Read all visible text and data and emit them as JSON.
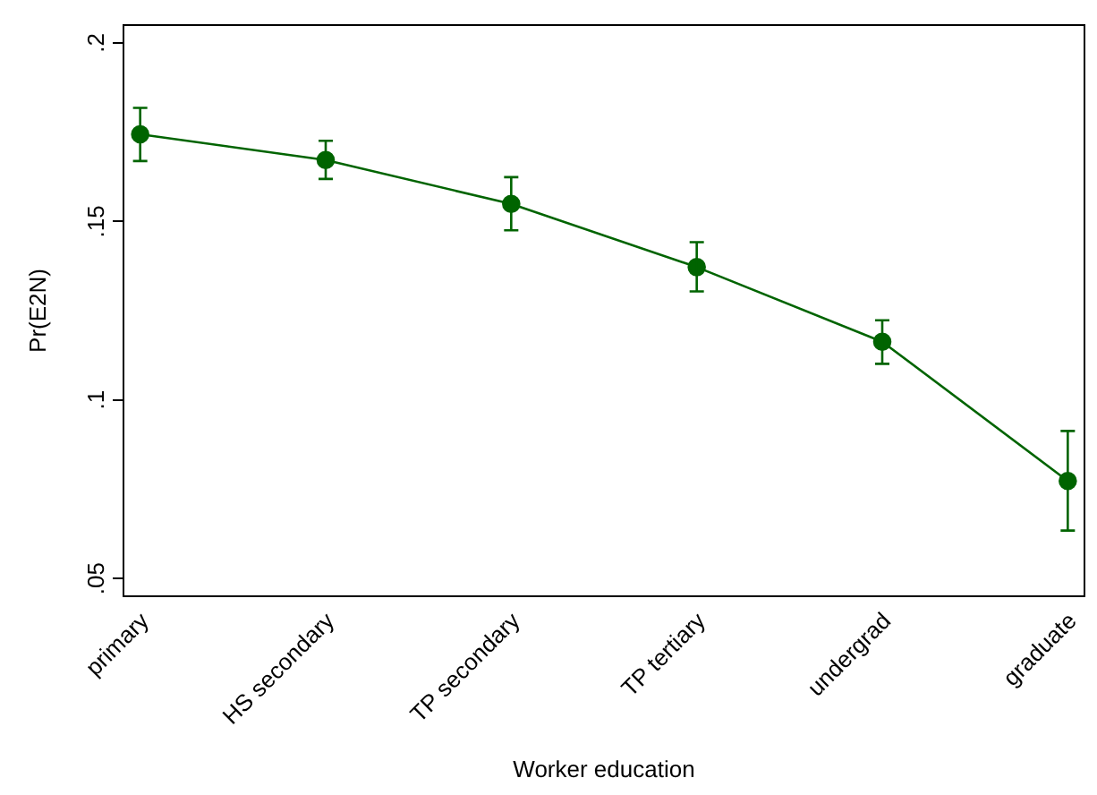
{
  "chart_data": {
    "type": "line",
    "xlabel": "Worker education",
    "ylabel": "Pr(E2N)",
    "categories": [
      "primary",
      "HS secondary",
      "TP secondary",
      "TP tertiary",
      "undergrad",
      "graduate"
    ],
    "series": [
      {
        "color": "#006400",
        "values": [
          0.1744,
          0.1672,
          0.1549,
          0.1372,
          0.1163,
          0.0773
        ],
        "errors": [
          [
            0.1669,
            0.1818
          ],
          [
            0.1619,
            0.1726
          ],
          [
            0.1475,
            0.1624
          ],
          [
            0.1304,
            0.1442
          ],
          [
            0.1101,
            0.1223
          ],
          [
            0.0634,
            0.0913
          ]
        ]
      }
    ],
    "ylim": [
      0.045,
      0.205
    ],
    "yticks": [
      {
        "value": 0.05,
        "label": ".05"
      },
      {
        "value": 0.1,
        "label": ".1"
      },
      {
        "value": 0.15,
        "label": ".15"
      },
      {
        "value": 0.2,
        "label": ".2"
      }
    ],
    "grid": false,
    "legend": false,
    "marker": "circle",
    "line_style": "solid"
  }
}
